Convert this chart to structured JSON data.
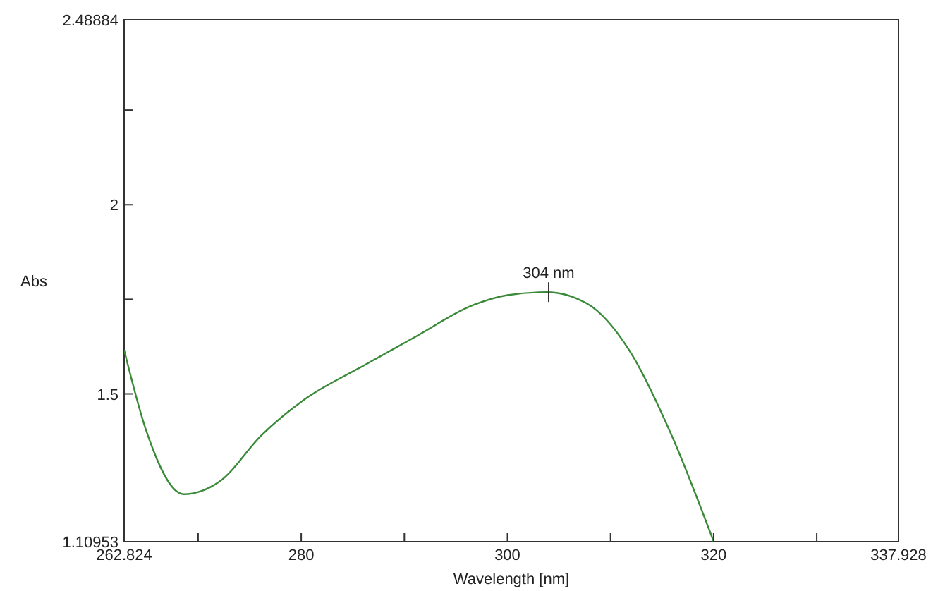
{
  "chart_data": {
    "type": "line",
    "xlabel": "Wavelength [nm]",
    "ylabel": "Abs",
    "xlim": [
      262.824,
      337.928
    ],
    "ylim": [
      1.10953,
      2.48884
    ],
    "xticks": [
      {
        "value": 262.824,
        "label": "262.824"
      },
      {
        "value": 270,
        "label": null
      },
      280,
      {
        "value": 290,
        "label": null
      },
      300,
      {
        "value": 310,
        "label": null
      },
      320,
      {
        "value": 330,
        "label": null
      },
      {
        "value": 337.928,
        "label": "337.928"
      }
    ],
    "yticks": [
      {
        "value": 1.10953,
        "label": "1.10953"
      },
      1.5,
      {
        "value": 1.75,
        "label": null
      },
      2,
      {
        "value": 2.25,
        "label": null
      },
      {
        "value": 2.48884,
        "label": "2.48884"
      }
    ],
    "grid": false,
    "marker": "none",
    "line_style": "solid",
    "annotations": [
      {
        "text": "304 nm",
        "x": 304,
        "y": 1.769
      }
    ],
    "series": [
      {
        "color": "#3a8a3a",
        "x": [
          262.824,
          265,
          268.6,
          272.1,
          276.2,
          280.3,
          285.8,
          291.2,
          296.7,
          300,
          303.8,
          307.7,
          311.8,
          315.9,
          320
        ],
        "values": [
          1.616,
          1.4,
          1.235,
          1.269,
          1.392,
          1.485,
          1.571,
          1.653,
          1.735,
          1.761,
          1.769,
          1.739,
          1.616,
          1.392,
          1.11
        ]
      }
    ]
  }
}
